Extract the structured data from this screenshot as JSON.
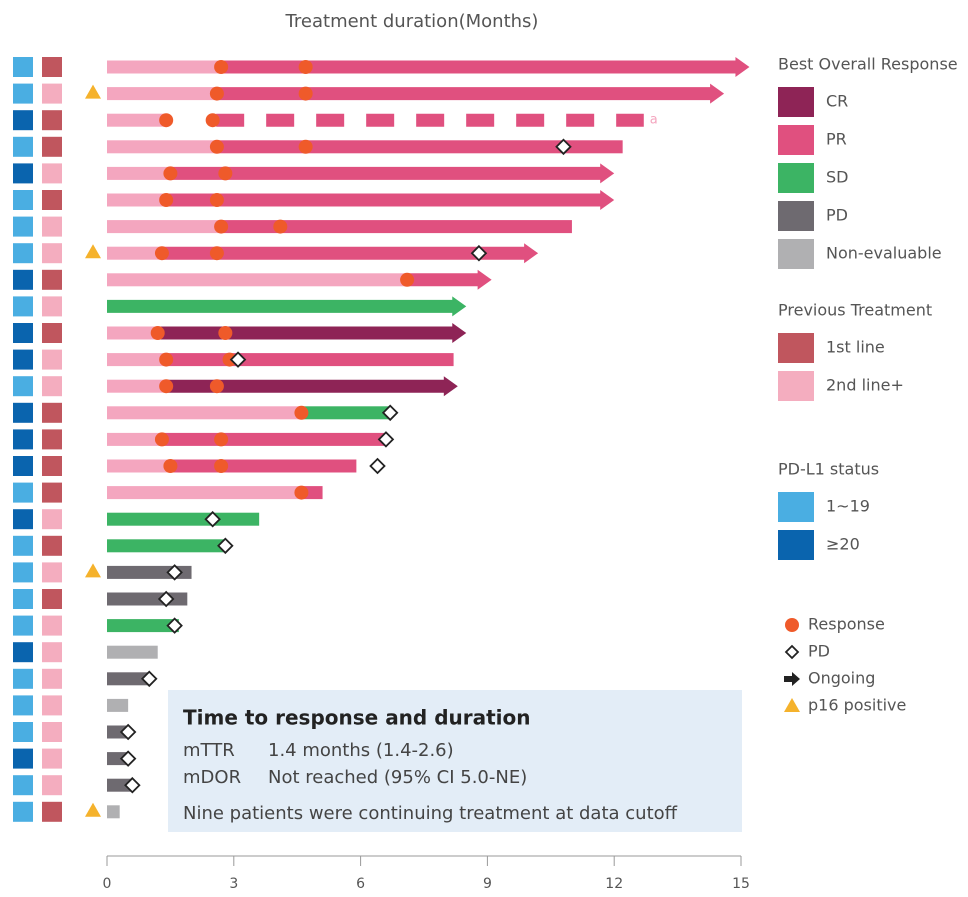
{
  "chart_data": {
    "type": "swimmer",
    "title": "Treatment duration(Months)",
    "xlim": [
      0,
      15
    ],
    "xticks": [
      0,
      3,
      6,
      9,
      12,
      15
    ],
    "pre_color": "#f4a6bf",
    "response_legend": {
      "title": "Best Overall Response",
      "items": [
        {
          "name": "CR",
          "color": "#8e2456"
        },
        {
          "name": "PR",
          "color": "#e0507f"
        },
        {
          "name": "SD",
          "color": "#3cb464"
        },
        {
          "name": "PD",
          "color": "#6e6a70"
        },
        {
          "name": "Non-evaluable",
          "color": "#b0b0b2"
        }
      ]
    },
    "previous_legend": {
      "title": "Previous Treatment",
      "items": [
        {
          "name": "1st line",
          "color": "#c0565e"
        },
        {
          "name": "2nd line+",
          "color": "#f4adbf"
        }
      ]
    },
    "pdl1_legend": {
      "title": "PD-L1 status",
      "items": [
        {
          "name": "1~19",
          "color": "#4aaee2"
        },
        {
          "name": "≥20",
          "color": "#0a64ae"
        }
      ]
    },
    "marker_legend": [
      {
        "name": "Response",
        "color": "#ef5a2a"
      },
      {
        "name": "PD"
      },
      {
        "name": "Ongoing"
      },
      {
        "name": "p16 positive",
        "color": "#f5b22c"
      }
    ],
    "rows": [
      {
        "pdl1": "1~19",
        "previous": "1st line",
        "pre": 2.7,
        "duration": 15.2,
        "response": "PR",
        "responses": [
          2.7,
          4.7
        ],
        "ongoing": true
      },
      {
        "pdl1": "1~19",
        "previous": "2nd line+",
        "p16": true,
        "pre": 2.6,
        "duration": 14.6,
        "response": "PR",
        "responses": [
          2.6,
          4.7
        ],
        "ongoing": true
      },
      {
        "pdl1": "≥20",
        "previous": "1st line",
        "pre": 1.4,
        "duration": 12.7,
        "response": "PR",
        "responses": [
          1.4,
          2.5
        ],
        "dashed": true,
        "note": "a"
      },
      {
        "pdl1": "1~19",
        "previous": "1st line",
        "pre": 2.6,
        "duration": 12.2,
        "response": "PR",
        "responses": [
          2.6,
          4.7
        ],
        "pd": [
          10.8
        ]
      },
      {
        "pdl1": "≥20",
        "previous": "2nd line+",
        "pre": 1.5,
        "duration": 12.0,
        "response": "PR",
        "responses": [
          1.5,
          2.8
        ],
        "ongoing": true
      },
      {
        "pdl1": "1~19",
        "previous": "1st line",
        "pre": 1.4,
        "duration": 12.0,
        "response": "PR",
        "responses": [
          1.4,
          2.6
        ],
        "ongoing": true
      },
      {
        "pdl1": "1~19",
        "previous": "2nd line+",
        "pre": 2.7,
        "duration": 11.0,
        "response": "PR",
        "responses": [
          2.7,
          4.1
        ]
      },
      {
        "pdl1": "1~19",
        "previous": "2nd line+",
        "p16": true,
        "pre": 1.3,
        "duration": 10.2,
        "response": "PR",
        "responses": [
          1.3,
          2.6
        ],
        "pd": [
          8.8
        ],
        "ongoing": true
      },
      {
        "pdl1": "≥20",
        "previous": "1st line",
        "pre": 7.1,
        "duration": 9.1,
        "response": "PR",
        "responses": [
          7.1
        ],
        "ongoing": true
      },
      {
        "pdl1": "1~19",
        "previous": "2nd line+",
        "duration": 8.5,
        "response": "SD",
        "ongoing": true
      },
      {
        "pdl1": "≥20",
        "previous": "1st line",
        "pre": 1.2,
        "duration": 8.5,
        "response": "CR",
        "responses": [
          1.2,
          2.8
        ],
        "ongoing": true
      },
      {
        "pdl1": "≥20",
        "previous": "2nd line+",
        "pre": 1.4,
        "duration": 8.2,
        "response": "PR",
        "responses": [
          1.4,
          2.9
        ],
        "pd": [
          3.1
        ]
      },
      {
        "pdl1": "1~19",
        "previous": "2nd line+",
        "pre": 1.4,
        "duration": 8.3,
        "response": "CR",
        "responses": [
          1.4,
          2.6
        ],
        "ongoing": true
      },
      {
        "pdl1": "≥20",
        "previous": "1st line",
        "pre": 4.6,
        "duration": 6.7,
        "response": "SD",
        "responses": [
          4.6
        ],
        "pd": [
          6.7
        ]
      },
      {
        "pdl1": "≥20",
        "previous": "1st line",
        "pre": 1.3,
        "duration": 6.6,
        "response": "PR",
        "responses": [
          1.3,
          2.7
        ],
        "pd": [
          6.6
        ]
      },
      {
        "pdl1": "≥20",
        "previous": "1st line",
        "pre": 1.5,
        "duration": 5.9,
        "response": "PR",
        "responses": [
          1.5,
          2.7
        ],
        "pd": [
          6.4
        ]
      },
      {
        "pdl1": "1~19",
        "previous": "1st line",
        "pre": 4.6,
        "duration": 5.1,
        "response": "PR",
        "responses": [
          4.6
        ]
      },
      {
        "pdl1": "≥20",
        "previous": "2nd line+",
        "duration": 3.6,
        "response": "SD",
        "pd": [
          2.5
        ]
      },
      {
        "pdl1": "1~19",
        "previous": "1st line",
        "duration": 2.8,
        "response": "SD",
        "pd": [
          2.8
        ]
      },
      {
        "pdl1": "1~19",
        "previous": "2nd line+",
        "p16": true,
        "duration": 2.0,
        "response": "PD",
        "pd": [
          1.6
        ]
      },
      {
        "pdl1": "1~19",
        "previous": "1st line",
        "duration": 1.9,
        "response": "PD",
        "pd": [
          1.4
        ]
      },
      {
        "pdl1": "1~19",
        "previous": "2nd line+",
        "duration": 1.7,
        "response": "SD",
        "pd": [
          1.6
        ]
      },
      {
        "pdl1": "≥20",
        "previous": "2nd line+",
        "duration": 1.2,
        "response": "Non-evaluable"
      },
      {
        "pdl1": "1~19",
        "previous": "2nd line+",
        "duration": 1.0,
        "response": "PD",
        "pd": [
          1.0
        ]
      },
      {
        "pdl1": "1~19",
        "previous": "2nd line+",
        "duration": 0.5,
        "response": "Non-evaluable"
      },
      {
        "pdl1": "1~19",
        "previous": "2nd line+",
        "duration": 0.5,
        "response": "PD",
        "pd": [
          0.5
        ]
      },
      {
        "pdl1": "≥20",
        "previous": "2nd line+",
        "duration": 0.5,
        "response": "PD",
        "pd": [
          0.5
        ]
      },
      {
        "pdl1": "1~19",
        "previous": "2nd line+",
        "duration": 0.6,
        "response": "PD",
        "pd": [
          0.6
        ]
      },
      {
        "pdl1": "1~19",
        "previous": "1st line",
        "p16": true,
        "duration": 0.3,
        "response": "Non-evaluable"
      }
    ],
    "summary": {
      "title": "Time to response and duration",
      "lines": [
        [
          "mTTR",
          "1.4 months (1.4-2.6)"
        ],
        [
          "mDOR",
          "Not reached (95% CI 5.0-NE)"
        ]
      ],
      "note": "Nine patients were continuing treatment at data cutoff"
    }
  }
}
